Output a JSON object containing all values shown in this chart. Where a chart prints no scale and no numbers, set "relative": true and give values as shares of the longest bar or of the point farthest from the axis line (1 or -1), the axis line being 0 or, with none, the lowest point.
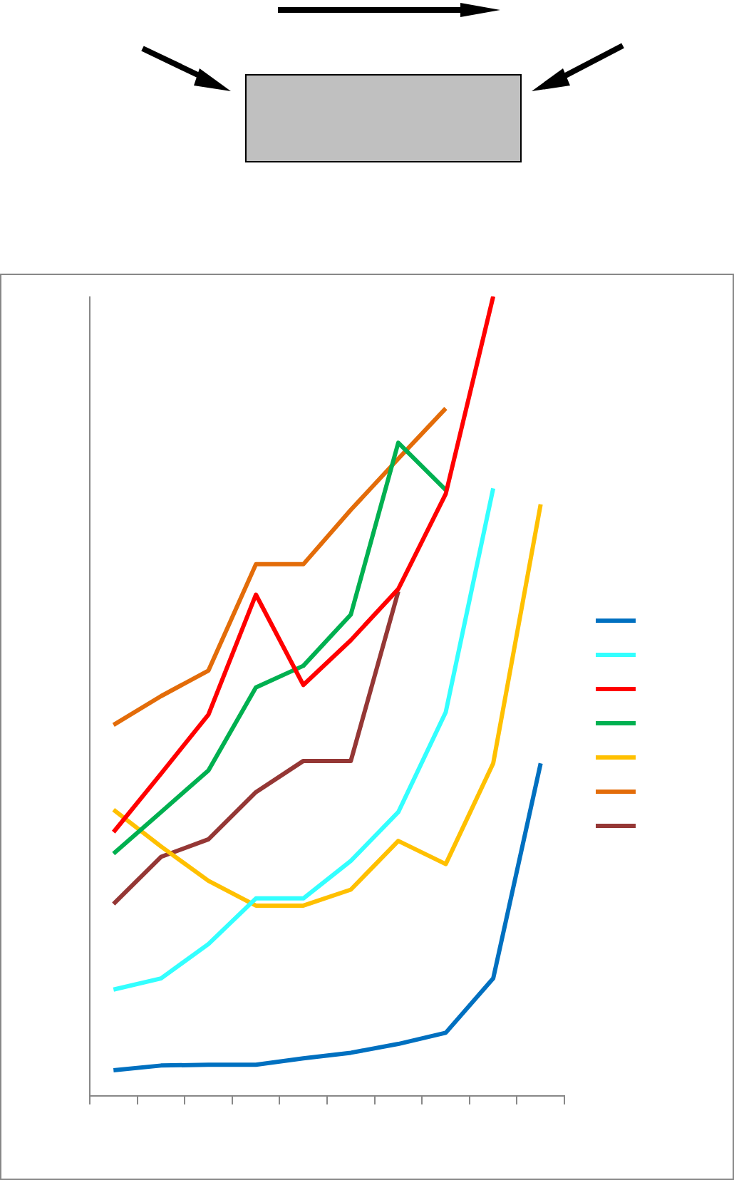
{
  "chart_data": {
    "type": "line",
    "relative": true,
    "categories": [
      null,
      null,
      null,
      null,
      null,
      null,
      null,
      null,
      null,
      null
    ],
    "grid": false,
    "legend": false,
    "marker": "none",
    "line_style": "solid",
    "series": [
      {
        "color": "#0070c0",
        "values": [
          0.032,
          0.038,
          0.039,
          0.039,
          0.047,
          0.054,
          0.065,
          0.079,
          0.147,
          0.416
        ]
      },
      {
        "color": "#33ffff",
        "values": [
          0.133,
          0.147,
          0.19,
          0.247,
          0.247,
          0.294,
          0.355,
          0.48,
          0.76,
          null
        ]
      },
      {
        "color": "#ff0000",
        "values": [
          0.33,
          0.403,
          0.477,
          0.627,
          0.514,
          0.57,
          0.634,
          0.753,
          1.0,
          null
        ]
      },
      {
        "color": "#00b050",
        "values": [
          0.303,
          0.355,
          0.407,
          0.511,
          0.538,
          0.602,
          0.817,
          0.758,
          null,
          null
        ]
      },
      {
        "color": "#ffc000",
        "values": [
          0.358,
          0.312,
          0.269,
          0.238,
          0.238,
          0.258,
          0.319,
          0.29,
          0.416,
          0.74
        ]
      },
      {
        "color": "#e36c09",
        "values": [
          0.464,
          0.5,
          0.532,
          0.665,
          0.665,
          0.733,
          0.797,
          0.86,
          null,
          null
        ]
      },
      {
        "color": "#953735",
        "values": [
          0.24,
          0.299,
          0.321,
          0.38,
          0.419,
          0.419,
          0.631,
          null,
          null,
          null
        ]
      }
    ]
  }
}
